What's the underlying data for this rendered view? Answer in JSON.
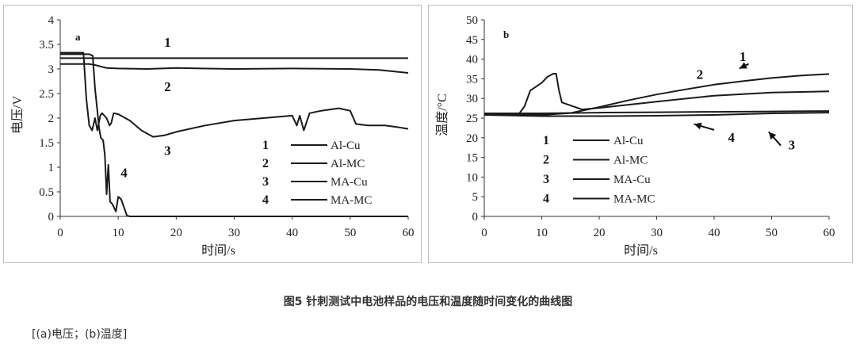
{
  "caption": "图5 针刺测试中电池样品的电压和温度随时间变化的曲线图",
  "subcaption": "[(a)电压；(b)温度]",
  "chart_data": [
    {
      "type": "line",
      "panel_label": "a",
      "xlabel": "时间/s",
      "ylabel": "电压/V",
      "xlim": [
        0,
        60
      ],
      "ylim": [
        0,
        4
      ],
      "xticks": [
        "0",
        "10",
        "20",
        "30",
        "40",
        "50",
        "60"
      ],
      "yticks": [
        "0",
        "0.5",
        "1",
        "1.5",
        "2",
        "2.5",
        "3",
        "3.5",
        "4"
      ],
      "legend": [
        {
          "num": "1",
          "name": "Al-Cu"
        },
        {
          "num": "2",
          "name": "Al-MC"
        },
        {
          "num": "3",
          "name": "MA-Cu"
        },
        {
          "num": "4",
          "name": "MA-MC"
        }
      ],
      "curve_labels": [
        {
          "text": "1",
          "x": 18.5,
          "y": 3.45
        },
        {
          "text": "2",
          "x": 18.5,
          "y": 2.55
        },
        {
          "text": "3",
          "x": 18.5,
          "y": 1.25
        },
        {
          "text": "4",
          "x": 11,
          "y": 0.8
        }
      ],
      "series": [
        {
          "points": [
            [
              0,
              3.22
            ],
            [
              60,
              3.22
            ]
          ]
        },
        {
          "points": [
            [
              0,
              3.1
            ],
            [
              5,
              3.1
            ],
            [
              6,
              3.08
            ],
            [
              8,
              3.02
            ],
            [
              10,
              3.01
            ],
            [
              15,
              3.0
            ],
            [
              20,
              3.02
            ],
            [
              30,
              3.0
            ],
            [
              40,
              3.01
            ],
            [
              50,
              3.0
            ],
            [
              55,
              2.98
            ],
            [
              60,
              2.92
            ]
          ]
        },
        {
          "points": [
            [
              0,
              3.33
            ],
            [
              4,
              3.33
            ],
            [
              4.5,
              2.4
            ],
            [
              5,
              1.85
            ],
            [
              5.5,
              1.75
            ],
            [
              6,
              2.0
            ],
            [
              6.4,
              1.75
            ],
            [
              6.9,
              2.05
            ],
            [
              7.2,
              2.1
            ],
            [
              8,
              2.0
            ],
            [
              8.5,
              1.85
            ],
            [
              8.8,
              1.9
            ],
            [
              9.2,
              2.1
            ],
            [
              10,
              2.08
            ],
            [
              12,
              1.95
            ],
            [
              14,
              1.75
            ],
            [
              16,
              1.62
            ],
            [
              18,
              1.65
            ],
            [
              20,
              1.72
            ],
            [
              25,
              1.85
            ],
            [
              30,
              1.95
            ],
            [
              35,
              2.0
            ],
            [
              40,
              2.05
            ],
            [
              40.8,
              1.85
            ],
            [
              41.3,
              2.05
            ],
            [
              42,
              1.75
            ],
            [
              43,
              2.1
            ],
            [
              45,
              2.15
            ],
            [
              48,
              2.2
            ],
            [
              50,
              2.15
            ],
            [
              51,
              1.88
            ],
            [
              53,
              1.85
            ],
            [
              56,
              1.85
            ],
            [
              58,
              1.82
            ],
            [
              60,
              1.78
            ]
          ]
        },
        {
          "points": [
            [
              0,
              3.3
            ],
            [
              5,
              3.3
            ],
            [
              5.6,
              3.27
            ],
            [
              6,
              2.6
            ],
            [
              6.4,
              2.15
            ],
            [
              6.7,
              1.8
            ],
            [
              7,
              1.6
            ],
            [
              7.4,
              1.55
            ],
            [
              7.7,
              1.25
            ],
            [
              8,
              0.45
            ],
            [
              8.3,
              1.05
            ],
            [
              8.6,
              0.3
            ],
            [
              9,
              0.25
            ],
            [
              9.6,
              0.1
            ],
            [
              10,
              0.4
            ],
            [
              10.5,
              0.35
            ],
            [
              11.5,
              0.02
            ],
            [
              12,
              0
            ],
            [
              60,
              0
            ]
          ]
        }
      ]
    },
    {
      "type": "line",
      "panel_label": "b",
      "xlabel": "时间/s",
      "ylabel": "温度/°C",
      "xlim": [
        0,
        60
      ],
      "ylim": [
        0,
        50
      ],
      "xticks": [
        "0",
        "10",
        "20",
        "30",
        "40",
        "50",
        "60"
      ],
      "yticks": [
        "0",
        "5",
        "10",
        "15",
        "20",
        "25",
        "30",
        "35",
        "40",
        "45",
        "50"
      ],
      "legend": [
        {
          "num": "1",
          "name": "Al-Cu"
        },
        {
          "num": "2",
          "name": "Al-MC"
        },
        {
          "num": "3",
          "name": "MA-Cu"
        },
        {
          "num": "4",
          "name": "MA-MC"
        }
      ],
      "curve_labels": [
        {
          "text": "1",
          "x": 45,
          "y": 39.5
        },
        {
          "text": "2",
          "x": 37.5,
          "y": 35
        },
        {
          "text": "3",
          "x": 53.5,
          "y": 17
        },
        {
          "text": "4",
          "x": 43,
          "y": 19
        }
      ],
      "series": [
        {
          "points": [
            [
              0,
              26.2
            ],
            [
              6,
              26
            ],
            [
              7,
              28
            ],
            [
              8,
              32
            ],
            [
              9,
              33
            ],
            [
              10,
              34
            ],
            [
              11,
              35.5
            ],
            [
              12,
              36.3
            ],
            [
              12.5,
              36.3
            ],
            [
              13,
              32
            ],
            [
              13.5,
              29
            ],
            [
              15,
              28.2
            ],
            [
              17,
              27.2
            ],
            [
              20,
              27.6
            ],
            [
              30,
              29.2
            ],
            [
              40,
              30.7
            ],
            [
              50,
              31.5
            ],
            [
              60,
              31.8
            ]
          ]
        },
        {
          "points": [
            [
              0,
              26
            ],
            [
              5,
              25.9
            ],
            [
              10,
              25.8
            ],
            [
              15,
              26.3
            ],
            [
              20,
              27.8
            ],
            [
              25,
              29.5
            ],
            [
              30,
              31
            ],
            [
              35,
              32.3
            ],
            [
              40,
              33.5
            ],
            [
              45,
              34.4
            ],
            [
              50,
              35.2
            ],
            [
              55,
              35.8
            ],
            [
              60,
              36.2
            ]
          ]
        },
        {
          "points": [
            [
              0,
              26.2
            ],
            [
              10,
              26.2
            ],
            [
              20,
              26.4
            ],
            [
              30,
              26.5
            ],
            [
              40,
              26.6
            ],
            [
              50,
              26.7
            ],
            [
              60,
              26.8
            ]
          ]
        },
        {
          "points": [
            [
              0,
              25.8
            ],
            [
              10,
              25.5
            ],
            [
              20,
              25.5
            ],
            [
              30,
              25.6
            ],
            [
              40,
              25.8
            ],
            [
              50,
              26.2
            ],
            [
              60,
              26.4
            ]
          ]
        }
      ]
    }
  ]
}
